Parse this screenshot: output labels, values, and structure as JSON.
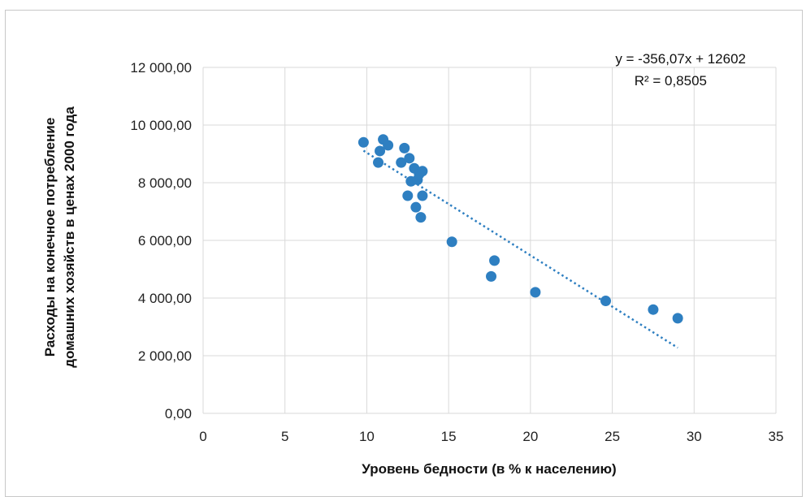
{
  "chart_data": {
    "type": "scatter",
    "xlabel": "Уровень бедности (в % к населению)",
    "ylabel_lines": [
      "Расходы на конечное потребление",
      "домашних хозяйств в ценах 2000 года"
    ],
    "xlim": [
      0,
      35
    ],
    "ylim": [
      0,
      12000
    ],
    "x_ticks": [
      0,
      5,
      10,
      15,
      20,
      25,
      30,
      35
    ],
    "x_tick_labels": [
      "0",
      "5",
      "10",
      "15",
      "20",
      "25",
      "30",
      "35"
    ],
    "y_ticks": [
      0,
      2000,
      4000,
      6000,
      8000,
      10000,
      12000
    ],
    "y_tick_labels": [
      "0,00",
      "2 000,00",
      "4 000,00",
      "6 000,00",
      "8 000,00",
      "10 000,00",
      "12 000,00"
    ],
    "grid": true,
    "point_color": "#2e7fc1",
    "trendline": {
      "slope": -356.07,
      "intercept": 12602,
      "x_range": [
        9.8,
        29.0
      ],
      "style": "dotted",
      "color": "#2e7fc1",
      "equation_label": "y = -356,07x + 12602",
      "r2_label": "R² = 0,8505"
    },
    "points": [
      {
        "x": 9.8,
        "y": 9400
      },
      {
        "x": 10.7,
        "y": 8700
      },
      {
        "x": 10.8,
        "y": 9100
      },
      {
        "x": 11.0,
        "y": 9500
      },
      {
        "x": 11.3,
        "y": 9300
      },
      {
        "x": 12.1,
        "y": 8700
      },
      {
        "x": 12.3,
        "y": 9200
      },
      {
        "x": 12.5,
        "y": 7550
      },
      {
        "x": 12.6,
        "y": 8850
      },
      {
        "x": 12.7,
        "y": 8050
      },
      {
        "x": 12.9,
        "y": 8500
      },
      {
        "x": 13.0,
        "y": 7150
      },
      {
        "x": 13.1,
        "y": 8100
      },
      {
        "x": 13.2,
        "y": 8300
      },
      {
        "x": 13.3,
        "y": 6800
      },
      {
        "x": 13.4,
        "y": 8400
      },
      {
        "x": 13.4,
        "y": 7550
      },
      {
        "x": 15.2,
        "y": 5950
      },
      {
        "x": 17.6,
        "y": 4750
      },
      {
        "x": 17.8,
        "y": 5300
      },
      {
        "x": 20.3,
        "y": 4200
      },
      {
        "x": 24.6,
        "y": 3900
      },
      {
        "x": 27.5,
        "y": 3600
      },
      {
        "x": 29.0,
        "y": 3300
      }
    ]
  }
}
